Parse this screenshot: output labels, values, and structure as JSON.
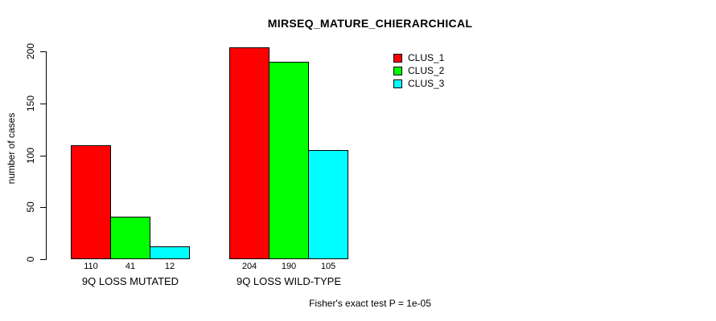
{
  "chart_data": {
    "type": "bar",
    "title": "MIRSEQ_MATURE_CHIERARCHICAL",
    "ylabel": "number of cases",
    "xlabel": "",
    "categories": [
      "9Q LOSS MUTATED",
      "9Q LOSS WILD-TYPE"
    ],
    "series": [
      {
        "name": "CLUS_1",
        "color": "#FF0000",
        "values": [
          110,
          204
        ]
      },
      {
        "name": "CLUS_2",
        "color": "#00FF00",
        "values": [
          41,
          190
        ]
      },
      {
        "name": "CLUS_3",
        "color": "#00FFFF",
        "values": [
          12,
          105
        ]
      }
    ],
    "bar_value_labels": [
      [
        "110",
        "41",
        "12"
      ],
      [
        "204",
        "190",
        "105"
      ]
    ],
    "yticks": [
      0,
      50,
      100,
      150,
      200
    ],
    "ylim": [
      0,
      200
    ],
    "grid": false,
    "legend_position": "top-right",
    "annotation": "Fisher's exact test P = 1e-05"
  }
}
